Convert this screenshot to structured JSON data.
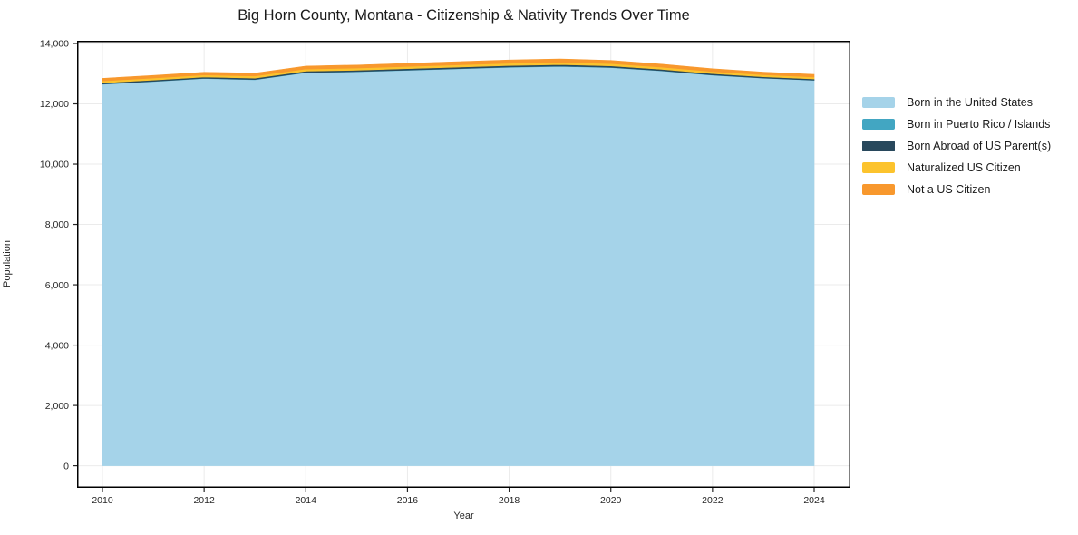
{
  "chart_data": {
    "type": "area",
    "stacked": true,
    "title": "Big Horn County, Montana - Citizenship & Nativity Trends Over Time",
    "xlabel": "Year",
    "ylabel": "Population",
    "grid": true,
    "legend_position": "right-outside",
    "background": "#ffffff",
    "grid_color": "#ebebeb",
    "spine_color": "#000000",
    "text_color": "#262626",
    "ylim": [
      0,
      14000
    ],
    "x": [
      2010,
      2011,
      2012,
      2013,
      2014,
      2015,
      2016,
      2017,
      2018,
      2019,
      2020,
      2021,
      2022,
      2023,
      2024
    ],
    "x_ticks": [
      {
        "value": 2010,
        "label": "2010"
      },
      {
        "value": 2012,
        "label": "2012"
      },
      {
        "value": 2014,
        "label": "2014"
      },
      {
        "value": 2016,
        "label": "2016"
      },
      {
        "value": 2018,
        "label": "2018"
      },
      {
        "value": 2020,
        "label": "2020"
      },
      {
        "value": 2022,
        "label": "2022"
      },
      {
        "value": 2024,
        "label": "2024"
      }
    ],
    "y_ticks": [
      {
        "value": 0,
        "label": "0"
      },
      {
        "value": 2000,
        "label": "2,000"
      },
      {
        "value": 4000,
        "label": "4,000"
      },
      {
        "value": 6000,
        "label": "6,000"
      },
      {
        "value": 8000,
        "label": "8,000"
      },
      {
        "value": 10000,
        "label": "10,000"
      },
      {
        "value": 12000,
        "label": "12,000"
      },
      {
        "value": 14000,
        "label": "14,000"
      }
    ],
    "series": [
      {
        "name": "Born in the United States",
        "color": "#a5d3e9",
        "values": [
          12650,
          12740,
          12840,
          12800,
          13030,
          13060,
          13110,
          13160,
          13210,
          13240,
          13200,
          13090,
          12950,
          12850,
          12780
        ]
      },
      {
        "name": "Born in Puerto Rico / Islands",
        "color": "#42a6c2",
        "values": [
          5,
          6,
          6,
          7,
          8,
          8,
          8,
          9,
          9,
          10,
          9,
          8,
          7,
          6,
          5
        ]
      },
      {
        "name": "Born Abroad of US Parent(s)",
        "color": "#28485c",
        "values": [
          40,
          42,
          44,
          45,
          46,
          46,
          48,
          48,
          50,
          50,
          48,
          46,
          44,
          42,
          40
        ]
      },
      {
        "name": "Naturalized US Citizen",
        "color": "#fcc32d",
        "values": [
          65,
          66,
          68,
          70,
          70,
          72,
          74,
          75,
          76,
          78,
          76,
          72,
          70,
          66,
          65
        ]
      },
      {
        "name": "Not a US Citizen",
        "color": "#f8982d",
        "values": [
          85,
          88,
          90,
          95,
          98,
          100,
          102,
          105,
          108,
          110,
          105,
          98,
          92,
          88,
          85
        ]
      }
    ]
  }
}
